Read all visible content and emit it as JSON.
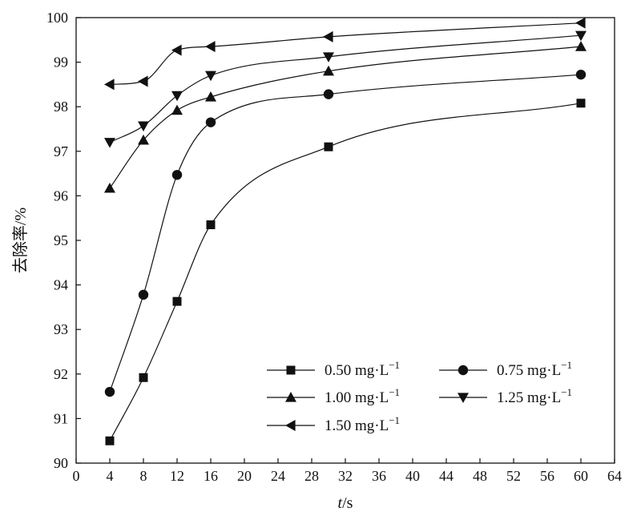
{
  "chart_data": {
    "type": "scatter",
    "xlabel_italic": "t",
    "xlabel_rest": "/s",
    "ylabel": "去除率/%",
    "xlim": [
      0,
      64
    ],
    "ylim": [
      90,
      100
    ],
    "x_ticks": [
      0,
      4,
      8,
      12,
      16,
      20,
      24,
      28,
      32,
      36,
      40,
      44,
      48,
      52,
      56,
      60,
      64
    ],
    "y_ticks": [
      90,
      91,
      92,
      93,
      94,
      95,
      96,
      97,
      98,
      99,
      100
    ],
    "grid": false,
    "legend_position": "bottom-right",
    "x": [
      4,
      8,
      12,
      16,
      30,
      60
    ],
    "series": [
      {
        "name": "0.50 mg·L",
        "sup": "−1",
        "marker": "square",
        "values": [
          90.5,
          91.92,
          93.63,
          95.35,
          97.1,
          98.08
        ]
      },
      {
        "name": "0.75 mg·L",
        "sup": "−1",
        "marker": "circle",
        "values": [
          91.6,
          93.78,
          96.47,
          97.65,
          98.28,
          98.72
        ]
      },
      {
        "name": "1.00 mg·L",
        "sup": "−1",
        "marker": "triangle-up",
        "values": [
          96.17,
          97.25,
          97.92,
          98.22,
          98.8,
          99.35
        ]
      },
      {
        "name": "1.25 mg·L",
        "sup": "−1",
        "marker": "triangle-down",
        "values": [
          97.2,
          97.57,
          98.25,
          98.7,
          99.12,
          99.6
        ]
      },
      {
        "name": "1.50 mg·L",
        "sup": "−1",
        "marker": "triangle-left",
        "values": [
          98.5,
          98.57,
          99.27,
          99.35,
          99.57,
          99.88
        ]
      }
    ]
  }
}
